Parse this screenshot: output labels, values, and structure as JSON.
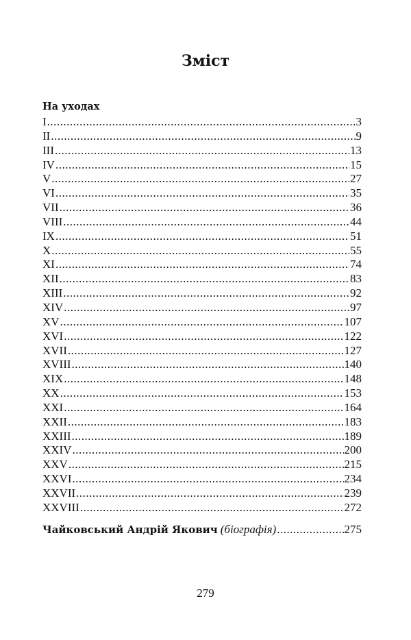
{
  "title": "Зміст",
  "section": {
    "heading": "На уходах",
    "entries": [
      {
        "label": "I",
        "page": "3"
      },
      {
        "label": "II",
        "page": "9"
      },
      {
        "label": "III",
        "page": "13"
      },
      {
        "label": "IV",
        "page": "15"
      },
      {
        "label": "V",
        "page": "27"
      },
      {
        "label": "VI",
        "page": "35"
      },
      {
        "label": "VII",
        "page": "36"
      },
      {
        "label": "VIII",
        "page": "44"
      },
      {
        "label": "IX",
        "page": "51"
      },
      {
        "label": "X",
        "page": "55"
      },
      {
        "label": "XI",
        "page": "74"
      },
      {
        "label": "XII",
        "page": "83"
      },
      {
        "label": "XIII",
        "page": "92"
      },
      {
        "label": "XIV",
        "page": "97"
      },
      {
        "label": "XV",
        "page": "107"
      },
      {
        "label": "XVI",
        "page": "122"
      },
      {
        "label": "XVII",
        "page": "127"
      },
      {
        "label": "XVIII",
        "page": "140"
      },
      {
        "label": "XIX",
        "page": "148"
      },
      {
        "label": "XX",
        "page": "153"
      },
      {
        "label": "XXI",
        "page": "164"
      },
      {
        "label": "XXII",
        "page": "183"
      },
      {
        "label": "XXIII",
        "page": "189"
      },
      {
        "label": "XXIV",
        "page": "200"
      },
      {
        "label": "XXV",
        "page": "215"
      },
      {
        "label": "XXVI",
        "page": "234"
      },
      {
        "label": "XXVII",
        "page": "239"
      },
      {
        "label": "XXVIII",
        "page": "272"
      }
    ]
  },
  "biography": {
    "name": "Чайковський Андрій Якович",
    "note": "(біографія)",
    "page": "275"
  },
  "page_number": "279"
}
